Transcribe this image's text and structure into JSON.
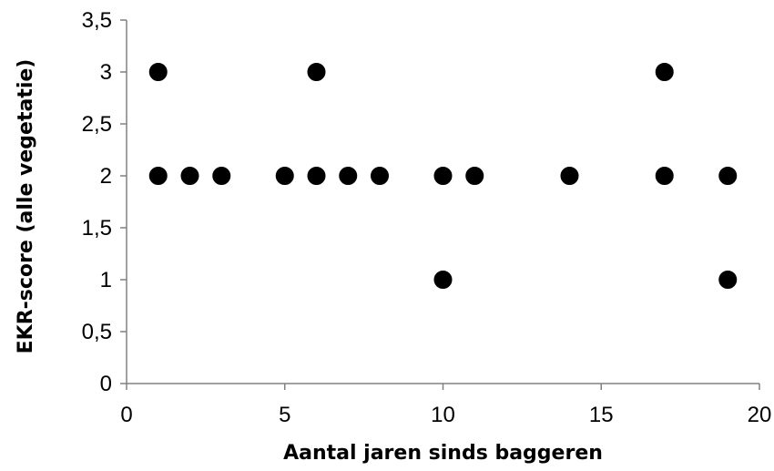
{
  "chart_data": {
    "type": "scatter",
    "title": "",
    "xlabel": "Aantal jaren sinds baggeren",
    "ylabel": "EKR-score (alle vegetatie)",
    "xlim": [
      0,
      20
    ],
    "ylim": [
      0,
      3.5
    ],
    "xticks": [
      0,
      5,
      10,
      15,
      20
    ],
    "yticks": [
      0,
      0.5,
      1,
      1.5,
      2,
      2.5,
      3,
      3.5
    ],
    "xtick_labels": [
      "0",
      "5",
      "10",
      "15",
      "20"
    ],
    "ytick_labels": [
      "0",
      "0,5",
      "1",
      "1,5",
      "2",
      "2,5",
      "3",
      "3,5"
    ],
    "grid": false,
    "legend": "none",
    "series": [
      {
        "color": "#000000",
        "marker": "circle",
        "points": [
          {
            "x": 1,
            "y": 3
          },
          {
            "x": 1,
            "y": 2
          },
          {
            "x": 2,
            "y": 2
          },
          {
            "x": 3,
            "y": 2
          },
          {
            "x": 5,
            "y": 2
          },
          {
            "x": 6,
            "y": 3
          },
          {
            "x": 6,
            "y": 2
          },
          {
            "x": 7,
            "y": 2
          },
          {
            "x": 8,
            "y": 2
          },
          {
            "x": 10,
            "y": 2
          },
          {
            "x": 10,
            "y": 1
          },
          {
            "x": 11,
            "y": 2
          },
          {
            "x": 14,
            "y": 2
          },
          {
            "x": 17,
            "y": 3
          },
          {
            "x": 17,
            "y": 2
          },
          {
            "x": 19,
            "y": 2
          },
          {
            "x": 19,
            "y": 1
          }
        ]
      }
    ]
  },
  "colors": {
    "axis": "#808080",
    "marker": "#000000",
    "text": "#000000"
  }
}
